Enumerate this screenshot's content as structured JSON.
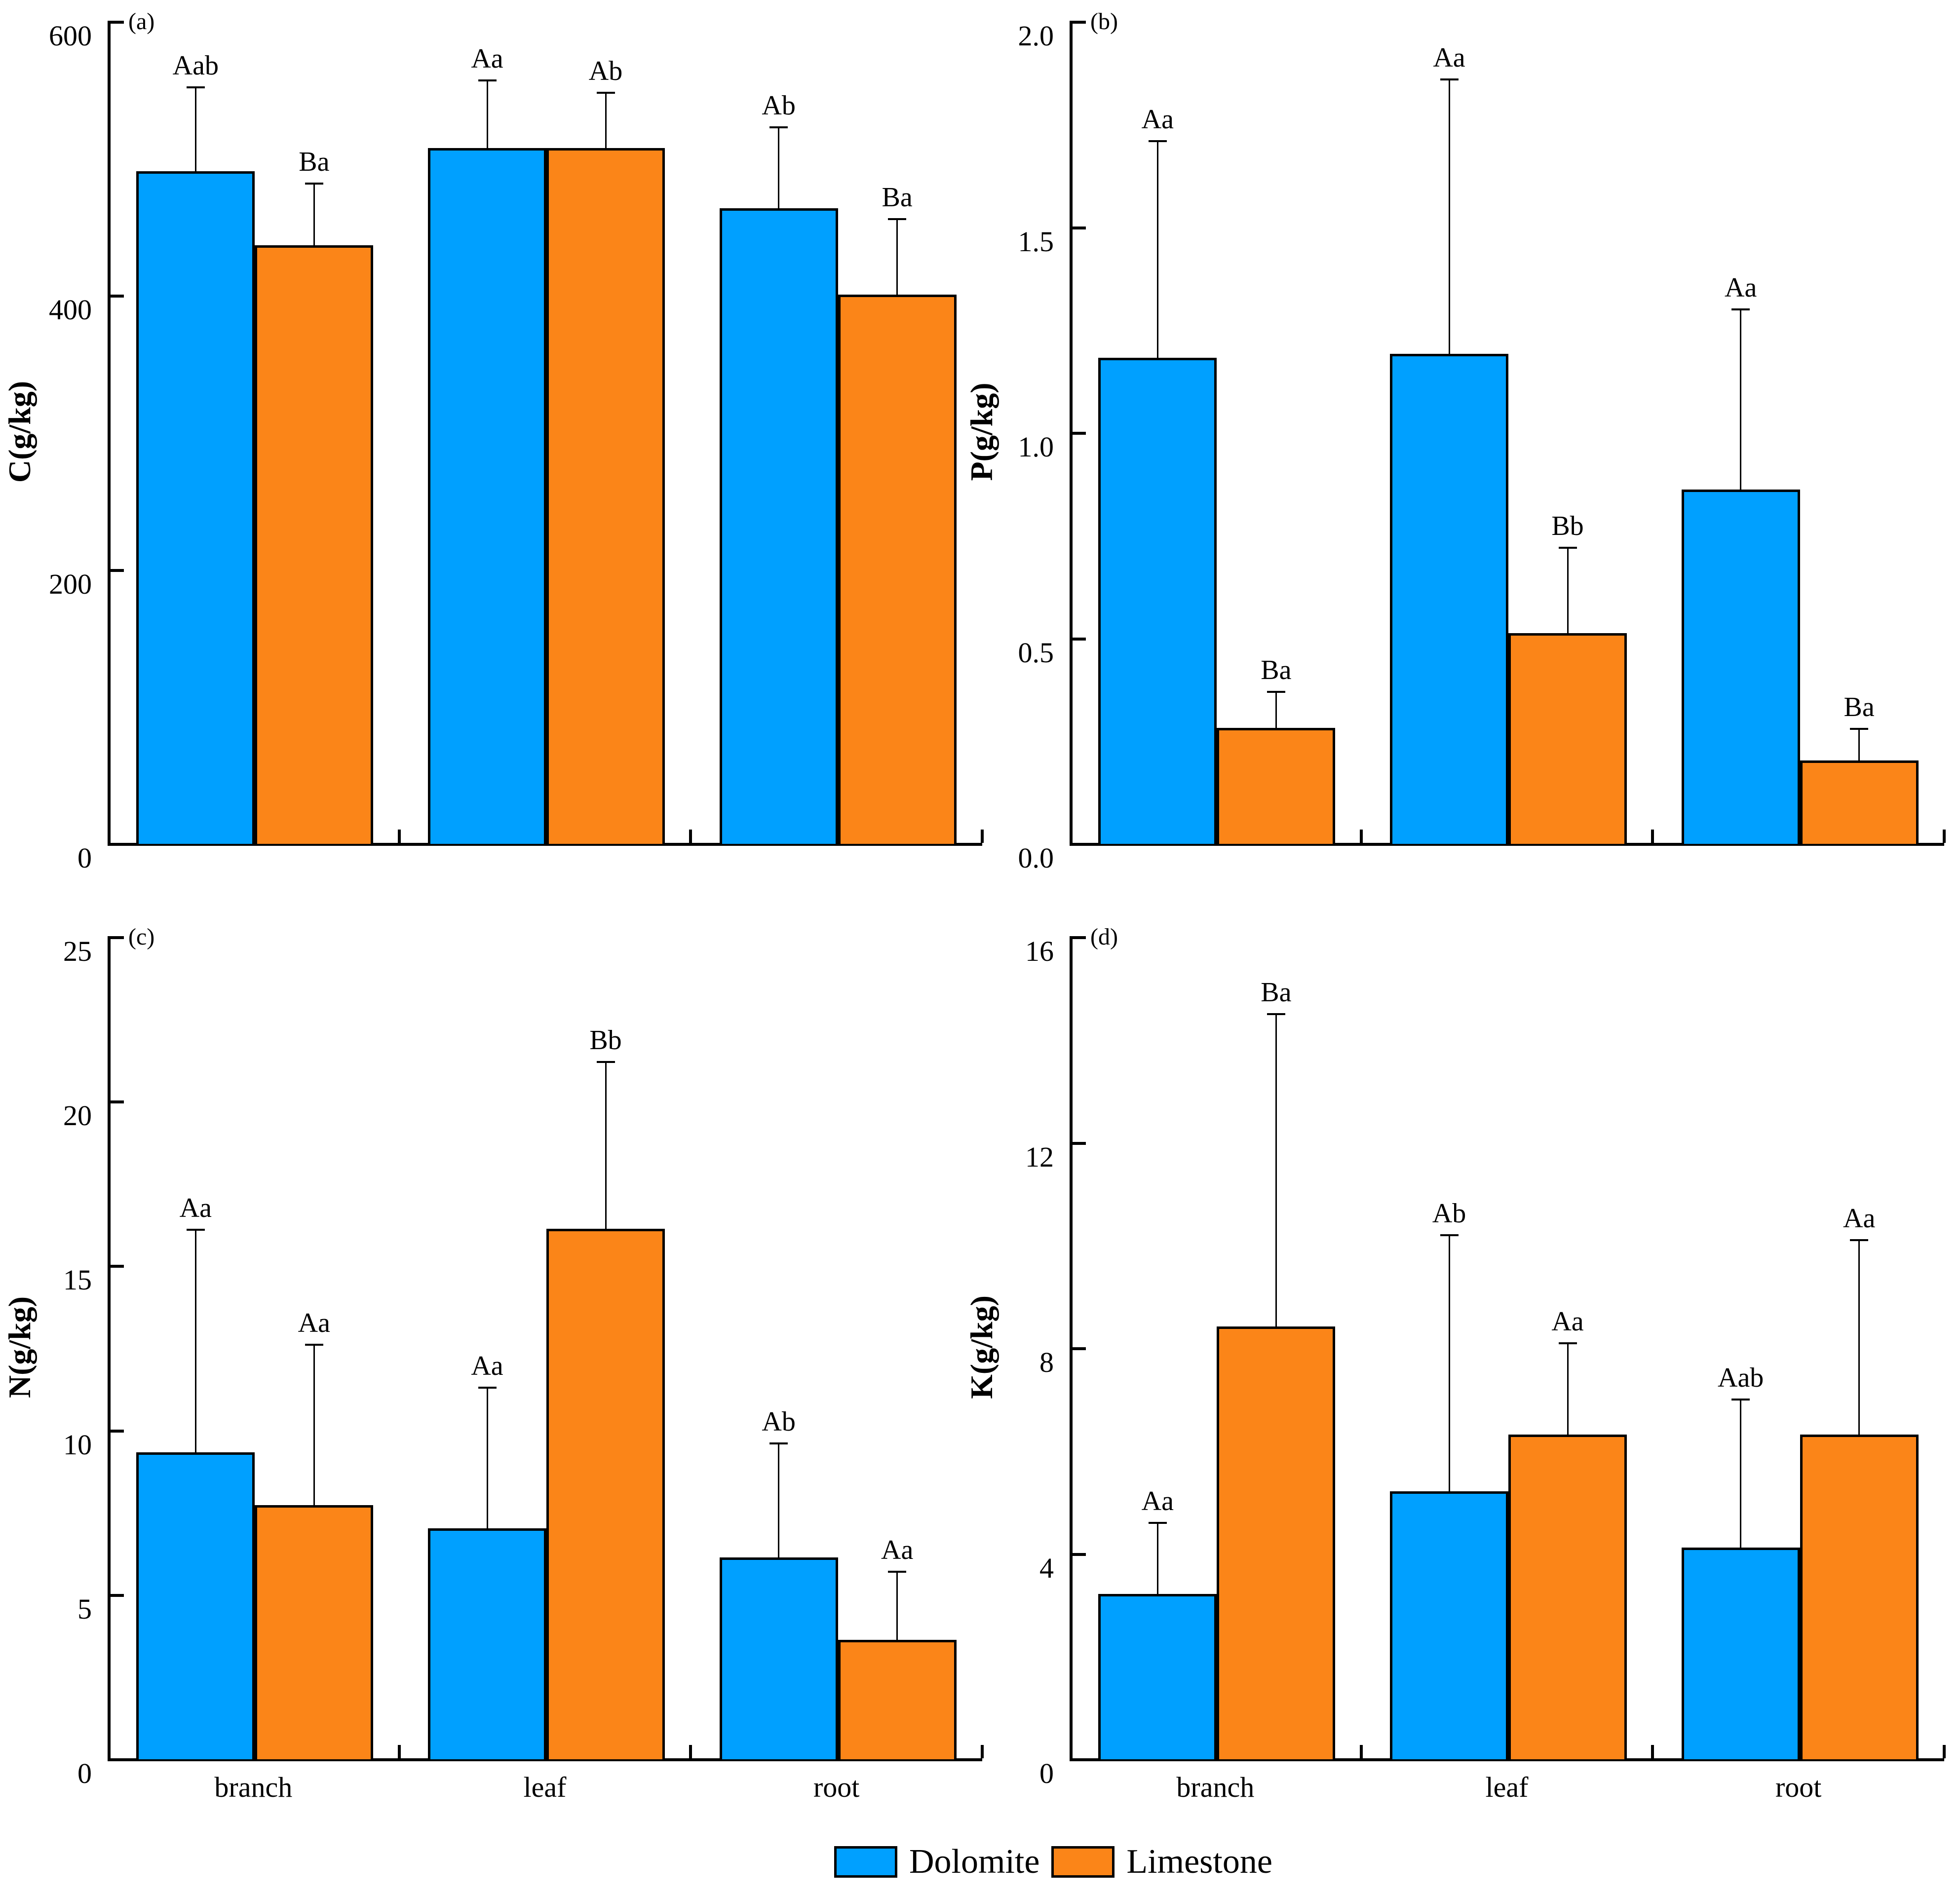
{
  "page": {
    "background": "#ffffff"
  },
  "colors": {
    "dolomite": "#00A0FF",
    "limestone": "#FB8518",
    "axis": "#000000"
  },
  "legend": {
    "items": [
      {
        "label": "Dolomite",
        "color_key": "dolomite"
      },
      {
        "label": "Limestone",
        "color_key": "limestone"
      }
    ]
  },
  "chart_data": [
    {
      "type": "bar",
      "panel_label": "(a)",
      "ylabel": "C(g/kg)",
      "ylim": [
        0,
        600
      ],
      "yticks": [
        0,
        200,
        400,
        600
      ],
      "tick_decimals": 0,
      "show_xlabels": false,
      "grid": false,
      "categories": [
        "branch",
        "leaf",
        "root"
      ],
      "series": [
        {
          "name": "Dolomite",
          "color_key": "dolomite",
          "values": [
            490,
            507,
            463
          ],
          "errors": [
            62,
            50,
            60
          ],
          "sig_labels": [
            "Aab",
            "Aa",
            "Ab"
          ]
        },
        {
          "name": "Limestone",
          "color_key": "limestone",
          "values": [
            436,
            507,
            400
          ],
          "errors": [
            46,
            41,
            56
          ],
          "sig_labels": [
            "Ba",
            "Ab",
            "Ba"
          ]
        }
      ]
    },
    {
      "type": "bar",
      "panel_label": "(b)",
      "ylabel": "P(g/kg)",
      "ylim": [
        0,
        2.0
      ],
      "yticks": [
        0.0,
        0.5,
        1.0,
        1.5,
        2.0
      ],
      "tick_decimals": 1,
      "show_xlabels": false,
      "grid": false,
      "categories": [
        "branch",
        "leaf",
        "root"
      ],
      "series": [
        {
          "name": "Dolomite",
          "color_key": "dolomite",
          "values": [
            1.18,
            1.19,
            0.86
          ],
          "errors": [
            0.53,
            0.67,
            0.44
          ],
          "sig_labels": [
            "Aa",
            "Aa",
            "Aa"
          ]
        },
        {
          "name": "Limestone",
          "color_key": "limestone",
          "values": [
            0.28,
            0.51,
            0.2
          ],
          "errors": [
            0.09,
            0.21,
            0.08
          ],
          "sig_labels": [
            "Ba",
            "Bb",
            "Ba"
          ]
        }
      ]
    },
    {
      "type": "bar",
      "panel_label": "(c)",
      "ylabel": "N(g/kg)",
      "ylim": [
        0,
        25
      ],
      "yticks": [
        0,
        5,
        10,
        15,
        20,
        25
      ],
      "tick_decimals": 0,
      "show_xlabels": true,
      "grid": false,
      "categories": [
        "branch",
        "leaf",
        "root"
      ],
      "series": [
        {
          "name": "Dolomite",
          "color_key": "dolomite",
          "values": [
            9.3,
            7.0,
            6.1
          ],
          "errors": [
            6.8,
            4.3,
            3.5
          ],
          "sig_labels": [
            "Aa",
            "Aa",
            "Ab"
          ]
        },
        {
          "name": "Limestone",
          "color_key": "limestone",
          "values": [
            7.7,
            16.1,
            3.6
          ],
          "errors": [
            4.9,
            5.1,
            2.1
          ],
          "sig_labels": [
            "Aa",
            "Bb",
            "Aa"
          ]
        }
      ]
    },
    {
      "type": "bar",
      "panel_label": "(d)",
      "ylabel": "K(g/kg)",
      "ylim": [
        0,
        16
      ],
      "yticks": [
        0,
        4,
        8,
        12,
        16
      ],
      "tick_decimals": 0,
      "show_xlabels": true,
      "grid": false,
      "categories": [
        "branch",
        "leaf",
        "root"
      ],
      "series": [
        {
          "name": "Dolomite",
          "color_key": "dolomite",
          "values": [
            3.2,
            5.2,
            4.1
          ],
          "errors": [
            1.4,
            5.0,
            2.9
          ],
          "sig_labels": [
            "Aa",
            "Ab",
            "Aab"
          ]
        },
        {
          "name": "Limestone",
          "color_key": "limestone",
          "values": [
            8.4,
            6.3,
            6.3
          ],
          "errors": [
            6.1,
            1.8,
            3.8
          ],
          "sig_labels": [
            "Ba",
            "Aa",
            "Aa"
          ]
        }
      ]
    }
  ]
}
